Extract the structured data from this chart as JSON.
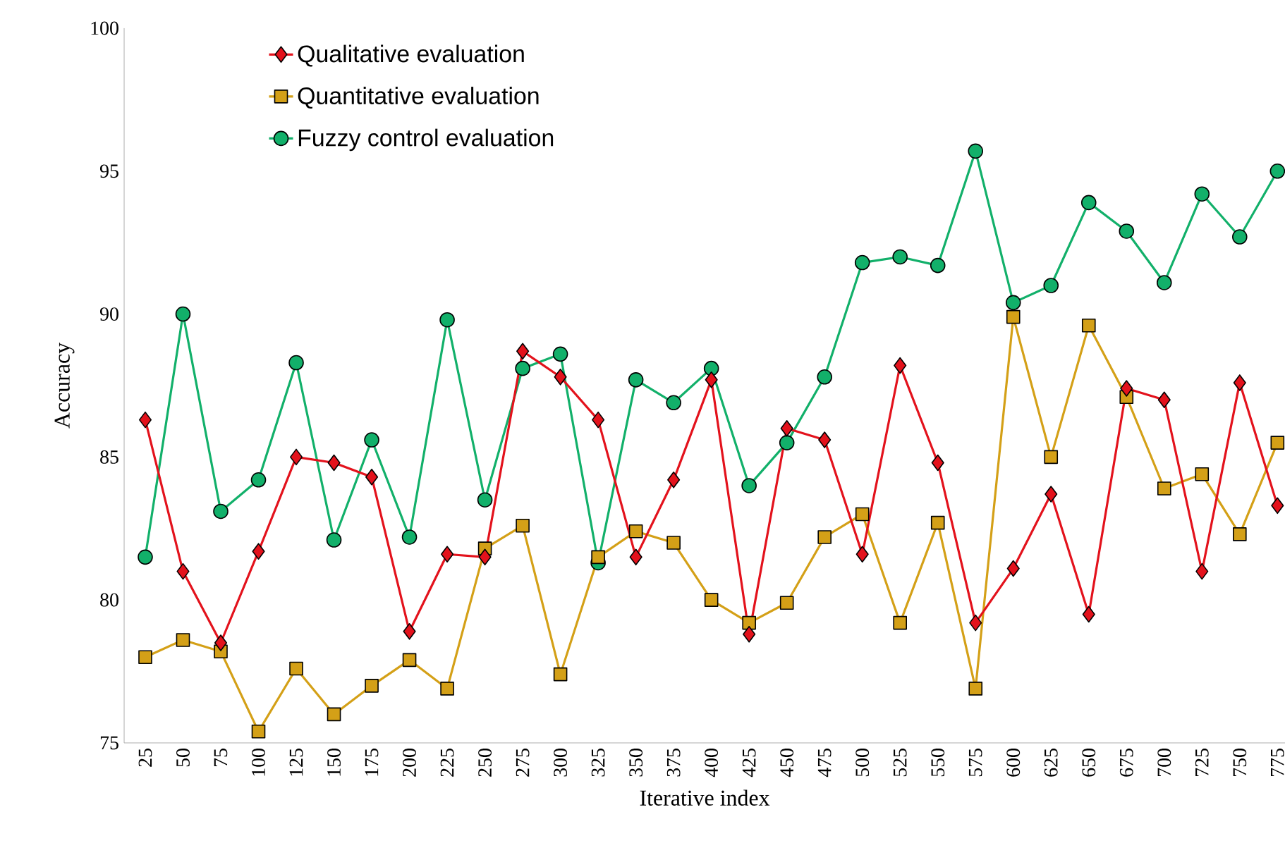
{
  "chart_data": {
    "type": "line",
    "xlabel": "Iterative index",
    "ylabel": "Accuracy",
    "categories": [
      "25",
      "50",
      "75",
      "100",
      "125",
      "150",
      "175",
      "200",
      "225",
      "250",
      "275",
      "300",
      "325",
      "350",
      "375",
      "400",
      "425",
      "450",
      "475",
      "500",
      "525",
      "550",
      "575",
      "600",
      "625",
      "650",
      "675",
      "700",
      "725",
      "750",
      "775"
    ],
    "ylim": [
      75,
      100
    ],
    "yticks": [
      75,
      80,
      85,
      90,
      95,
      100
    ],
    "legend": "top left",
    "grid": false,
    "series": [
      {
        "name": "Qualitative evaluation",
        "color": "#e3121c",
        "marker": "diamond",
        "values": [
          86.3,
          81.0,
          78.5,
          81.7,
          85.0,
          84.8,
          84.3,
          78.9,
          81.6,
          81.5,
          88.7,
          87.8,
          86.3,
          81.5,
          84.2,
          87.7,
          78.8,
          86.0,
          85.6,
          81.6,
          88.2,
          84.8,
          79.2,
          81.1,
          83.7,
          79.5,
          87.4,
          87.0,
          81.0,
          87.6,
          83.3
        ]
      },
      {
        "name": "Quantitative evaluation",
        "color": "#d4a017",
        "marker": "square",
        "values": [
          78.0,
          78.6,
          78.2,
          75.4,
          77.6,
          76.0,
          77.0,
          77.9,
          76.9,
          81.8,
          82.6,
          77.4,
          81.5,
          82.4,
          82.0,
          80.0,
          79.2,
          79.9,
          82.2,
          83.0,
          79.2,
          82.7,
          76.9,
          89.9,
          85.0,
          89.6,
          87.1,
          83.9,
          84.4,
          82.3,
          85.5
        ]
      },
      {
        "name": "Fuzzy control evaluation",
        "color": "#12b06a",
        "marker": "circle",
        "values": [
          81.5,
          90.0,
          83.1,
          84.2,
          88.3,
          82.1,
          85.6,
          82.2,
          89.8,
          83.5,
          88.1,
          88.6,
          81.3,
          87.7,
          86.9,
          88.1,
          84.0,
          85.5,
          87.8,
          91.8,
          92.0,
          91.7,
          95.7,
          90.4,
          91.0,
          93.9,
          92.9,
          91.1,
          94.2,
          92.7,
          95.0
        ]
      }
    ]
  }
}
